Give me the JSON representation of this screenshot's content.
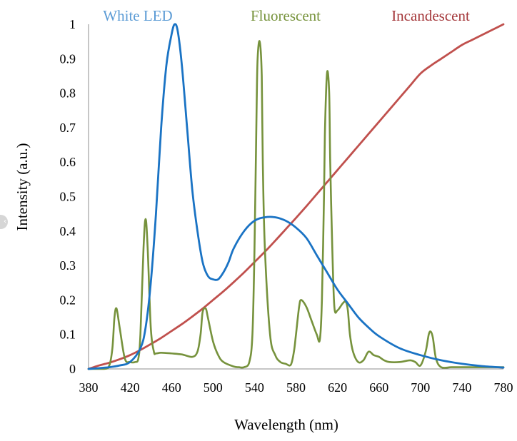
{
  "chart_data": {
    "type": "line",
    "title": "",
    "xlabel": "Wavelength (nm)",
    "ylabel": "Intensity (a.u.)",
    "xlim": [
      380,
      780
    ],
    "ylim": [
      0,
      1
    ],
    "xticks": [
      "380",
      "420",
      "460",
      "500",
      "540",
      "580",
      "620",
      "660",
      "700",
      "740",
      "780"
    ],
    "yticks": [
      "0",
      "0.1",
      "0.2",
      "0.3",
      "0.4",
      "0.5",
      "0.6",
      "0.7",
      "0.8",
      "0.9",
      "1"
    ],
    "grid": false,
    "legend_position": "top",
    "series": [
      {
        "name": "White LED",
        "color": "#1a73c4",
        "legend_color": "#5b9bd5",
        "x": [
          380,
          400,
          410,
          420,
          430,
          435,
          440,
          445,
          450,
          455,
          460,
          463,
          466,
          470,
          475,
          480,
          485,
          490,
          495,
          500,
          505,
          510,
          515,
          520,
          530,
          540,
          550,
          560,
          570,
          580,
          590,
          600,
          610,
          620,
          630,
          640,
          650,
          660,
          680,
          700,
          720,
          740,
          760,
          780
        ],
        "y": [
          0,
          0.005,
          0.01,
          0.02,
          0.06,
          0.12,
          0.25,
          0.45,
          0.7,
          0.88,
          0.97,
          1.0,
          0.98,
          0.88,
          0.7,
          0.52,
          0.4,
          0.31,
          0.27,
          0.26,
          0.26,
          0.28,
          0.31,
          0.35,
          0.4,
          0.43,
          0.44,
          0.44,
          0.43,
          0.41,
          0.38,
          0.33,
          0.28,
          0.23,
          0.19,
          0.15,
          0.12,
          0.095,
          0.06,
          0.04,
          0.025,
          0.015,
          0.008,
          0.004
        ]
      },
      {
        "name": "Fluorescent",
        "color": "#76923c",
        "legend_color": "#77933c",
        "x": [
          380,
          395,
          400,
          403,
          405,
          407,
          410,
          415,
          420,
          425,
          428,
          430,
          433,
          435,
          437,
          440,
          443,
          445,
          450,
          460,
          470,
          480,
          485,
          488,
          490,
          493,
          495,
          500,
          505,
          510,
          520,
          525,
          530,
          535,
          538,
          540,
          542,
          543,
          545,
          547,
          548,
          550,
          555,
          560,
          565,
          570,
          575,
          578,
          580,
          583,
          585,
          590,
          595,
          600,
          603,
          605,
          607,
          608,
          610,
          612,
          613,
          615,
          617,
          620,
          625,
          628,
          630,
          632,
          635,
          640,
          645,
          650,
          655,
          660,
          665,
          670,
          680,
          690,
          695,
          700,
          705,
          708,
          710,
          712,
          715,
          720,
          730,
          740,
          760,
          780
        ],
        "y": [
          0,
          0,
          0.01,
          0.06,
          0.15,
          0.175,
          0.12,
          0.03,
          0.02,
          0.02,
          0.03,
          0.1,
          0.35,
          0.435,
          0.35,
          0.12,
          0.05,
          0.045,
          0.047,
          0.045,
          0.042,
          0.035,
          0.05,
          0.1,
          0.165,
          0.175,
          0.15,
          0.08,
          0.04,
          0.02,
          0.007,
          0.005,
          0.005,
          0.02,
          0.1,
          0.35,
          0.75,
          0.9,
          0.95,
          0.85,
          0.6,
          0.35,
          0.1,
          0.04,
          0.02,
          0.015,
          0.012,
          0.05,
          0.1,
          0.18,
          0.2,
          0.18,
          0.14,
          0.1,
          0.085,
          0.2,
          0.5,
          0.7,
          0.86,
          0.8,
          0.6,
          0.35,
          0.18,
          0.17,
          0.19,
          0.195,
          0.17,
          0.1,
          0.05,
          0.02,
          0.025,
          0.05,
          0.04,
          0.035,
          0.025,
          0.02,
          0.02,
          0.025,
          0.02,
          0.01,
          0.05,
          0.1,
          0.108,
          0.09,
          0.03,
          0.005,
          0.005,
          0.005,
          0.005,
          0.005
        ]
      },
      {
        "name": "Incandescent",
        "color": "#c0504d",
        "legend_color": "#a4373a",
        "x": [
          380,
          390,
          400,
          410,
          420,
          430,
          440,
          450,
          460,
          470,
          480,
          490,
          500,
          510,
          520,
          530,
          540,
          550,
          560,
          570,
          580,
          590,
          600,
          610,
          620,
          630,
          640,
          650,
          660,
          670,
          680,
          690,
          700,
          710,
          720,
          730,
          740,
          750,
          760,
          770,
          780
        ],
        "y": [
          0,
          0.01,
          0.018,
          0.028,
          0.04,
          0.055,
          0.072,
          0.09,
          0.11,
          0.13,
          0.152,
          0.175,
          0.2,
          0.225,
          0.252,
          0.28,
          0.31,
          0.34,
          0.372,
          0.405,
          0.438,
          0.472,
          0.507,
          0.542,
          0.577,
          0.612,
          0.647,
          0.682,
          0.717,
          0.752,
          0.787,
          0.822,
          0.857,
          0.88,
          0.9,
          0.92,
          0.94,
          0.955,
          0.97,
          0.985,
          1.0
        ]
      }
    ]
  }
}
